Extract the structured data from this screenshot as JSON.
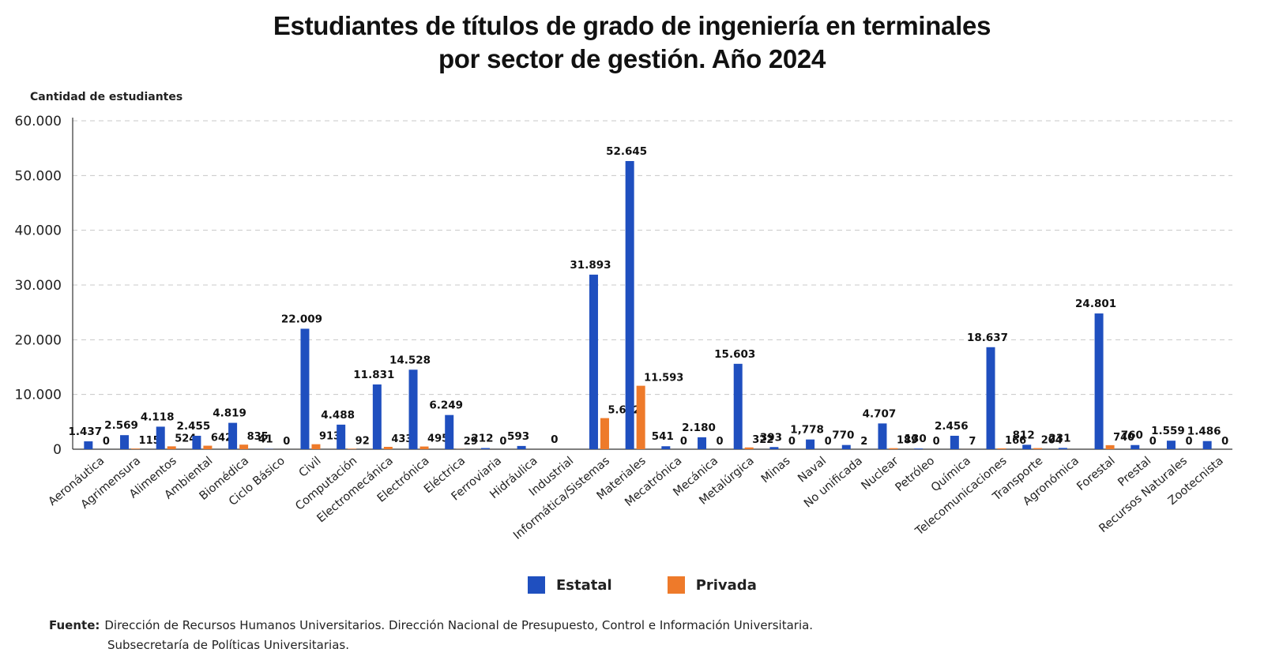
{
  "title_line1": "Estudiantes de títulos de grado de ingeniería en terminales",
  "title_line2": "por sector de gestión. Año 2024",
  "source_label": "Fuente:",
  "source_line1": "Dirección de Recursos Humanos Universitarios. Dirección Nacional de Presupuesto, Control e Información Universitaria.",
  "source_line2": "Subsecretaría de Políticas Universitarias.",
  "colors": {
    "estatal": "#1f4fbf",
    "privada": "#ee7a2a"
  },
  "chart_data": {
    "type": "bar",
    "title": "Estudiantes de títulos de grado de ingeniería en terminales por sector de gestión. Año 2024",
    "ylabel": "Cantidad de estudiantes",
    "xlabel": "",
    "ylim": [
      0,
      60000
    ],
    "yticks": [
      0,
      10000,
      20000,
      30000,
      40000,
      50000,
      60000
    ],
    "ytick_labels": [
      "0",
      "10.000",
      "20.000",
      "30.000",
      "40.000",
      "50.000",
      "60.000"
    ],
    "grid": true,
    "legend_position": "bottom",
    "categories": [
      "Aeronáutica",
      "Agrimensura",
      "Alimentos",
      "Ambiental",
      "Biomédica",
      "Ciclo Básico",
      "Civil",
      "Computación",
      "Electromecánica",
      "Electrónica",
      "Eléctrica",
      "Ferroviaria",
      "Hidráulica",
      "Industrial",
      "Informática/Sistemas",
      "Materiales",
      "Mecatrónica",
      "Mecánica",
      "Metalúrgica",
      "Minas",
      "Naval",
      "No unificada",
      "Nuclear",
      "Petróleo",
      "Química",
      "Telecomunicaciones",
      "Transporte",
      "Agronómica",
      "Forestal",
      "Prestal",
      "Recursos Naturales",
      "Zootecnista"
    ],
    "series": [
      {
        "name": "Estatal",
        "values": [
          1437,
          2569,
          4118,
          2455,
          4819,
          41,
          22009,
          4488,
          11831,
          14528,
          6249,
          212,
          593,
          0,
          31893,
          52645,
          541,
          2180,
          15603,
          393,
          1778,
          770,
          4707,
          130,
          2456,
          18637,
          812,
          231,
          24801,
          760,
          1559,
          1486
        ],
        "labels": [
          "1.437",
          "2.569",
          "4.118",
          "2.455",
          "4.819",
          "41",
          "22.009",
          "4.488",
          "11.831",
          "14.528",
          "6.249",
          "212",
          "593",
          "0",
          "31.893",
          "52.645",
          "541",
          "2.180",
          "15.603",
          "393",
          "1,778",
          "770",
          "4.707",
          "130",
          "2.456",
          "18.637",
          "812",
          "231",
          "24.801",
          "760",
          "1.559",
          "1.486"
        ]
      },
      {
        "name": "Privada",
        "values": [
          0,
          115,
          524,
          642,
          835,
          0,
          913,
          92,
          433,
          495,
          29,
          0,
          null,
          null,
          5682,
          11593,
          0,
          0,
          322,
          0,
          0,
          2,
          189,
          0,
          7,
          166,
          204,
          null,
          740,
          0,
          0,
          0
        ],
        "labels": [
          "0",
          "115",
          "524",
          "642",
          "835",
          "0",
          "913",
          "92",
          "433",
          "495",
          "29",
          "0",
          "",
          "",
          "5.682",
          "11.593",
          "0",
          "0",
          "322",
          "0",
          "0",
          "2",
          "189",
          "0",
          "7",
          "166",
          "204",
          "",
          "740",
          "0",
          "0",
          "0"
        ]
      }
    ]
  }
}
